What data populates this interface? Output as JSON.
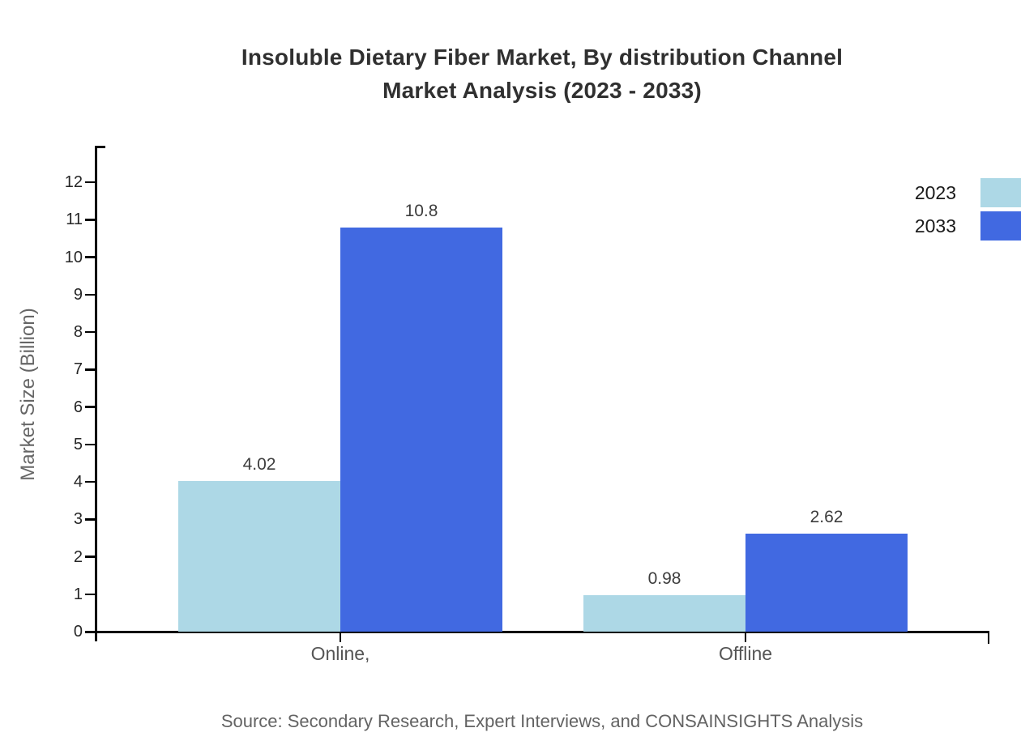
{
  "title": {
    "line1": "Insoluble Dietary Fiber Market, By distribution Channel",
    "line2": "Market Analysis (2023 - 2033)"
  },
  "source": "Source: Secondary Research, Expert Interviews, and CONSAINSIGHTS Analysis",
  "chart_data": {
    "type": "bar",
    "title": "Insoluble Dietary Fiber Market, By distribution Channel Market Analysis (2023 - 2033)",
    "categories": [
      "Online,",
      "Offline"
    ],
    "series": [
      {
        "name": "2023",
        "color": "#ADD8E6",
        "values": [
          4.02,
          0.98
        ],
        "labels": [
          "4.02",
          "0.98"
        ]
      },
      {
        "name": "2033",
        "color": "#4169E1",
        "values": [
          10.8,
          2.62
        ],
        "labels": [
          "10.8",
          "2.62"
        ]
      }
    ],
    "xlabel": "",
    "ylabel": "Market Size (Billion)",
    "ylim": [
      0,
      12
    ],
    "ytick_interval": 1,
    "yticks": [
      0,
      1,
      2,
      3,
      4,
      5,
      6,
      7,
      8,
      9,
      10,
      11,
      12
    ],
    "grid": false,
    "legend_position": "top-right",
    "axis_color": "#000000"
  }
}
